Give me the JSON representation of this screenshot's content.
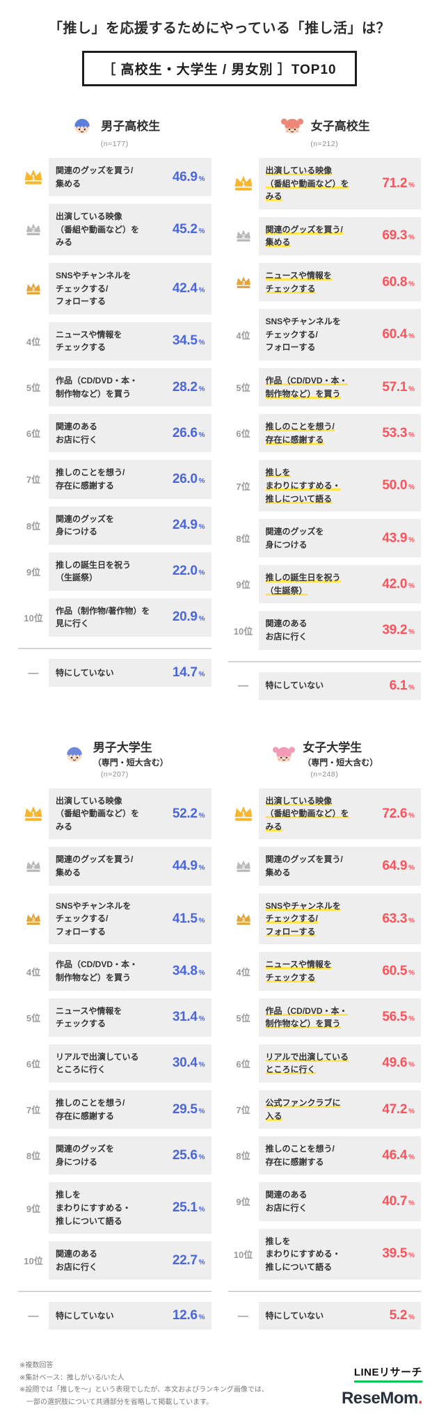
{
  "page": {
    "title": "「推し」を応援するためにやっている「推し活」は？",
    "subtitle": "［ 高校生・大学生 / 男女別 ］TOP10"
  },
  "notes": [
    "※複数回答",
    "※集計ベース：推しがいる/いた人",
    "※設問では「推しを〜」という表現でしたが、本文およびランキング画像では、",
    "　一部の選択肢について共通部分を省略して掲載しています。"
  ],
  "logos": {
    "line_research": "LINEリサーチ",
    "resemom_name": "ReseMom",
    "resemom_dot": "."
  },
  "colors": {
    "male_accent": "#4a66d8",
    "female_accent": "#f9545c",
    "row_bg": "#eeeeee",
    "highlight_underline": "#ffe44a",
    "crown_gold": "#f8b62d",
    "crown_silver": "#b9b9b9",
    "crown_bronze": "#e2a43c",
    "line_green": "#06C755"
  },
  "chart_data": [
    {
      "type": "table",
      "id": "male-highschool",
      "gender": "male",
      "group": "男子高校生",
      "group_sub": "",
      "n_label": "(n=177)",
      "unit": "%",
      "avatar": {
        "icon": "male-student-icon",
        "hair": "#5c7edc",
        "skin": "#fbdec3"
      },
      "rows": [
        {
          "rank": "1",
          "medal": "gold",
          "item": "関連のグッズを買う/\n集める",
          "value": 46.9,
          "highlight": false
        },
        {
          "rank": "2",
          "medal": "silver",
          "item": "出演している映像\n（番組や動画など）を\nみる",
          "value": 45.2,
          "highlight": false
        },
        {
          "rank": "3",
          "medal": "bronze",
          "item": "SNSやチャンネルを\nチェックする/\nフォローする",
          "value": 42.4,
          "highlight": false
        },
        {
          "rank": "4位",
          "medal": null,
          "item": "ニュースや情報を\nチェックする",
          "value": 34.5,
          "highlight": false
        },
        {
          "rank": "5位",
          "medal": null,
          "item": "作品（CD/DVD・本・\n制作物など）を買う",
          "value": 28.2,
          "highlight": false
        },
        {
          "rank": "6位",
          "medal": null,
          "item": "関連のある\nお店に行く",
          "value": 26.6,
          "highlight": false
        },
        {
          "rank": "7位",
          "medal": null,
          "item": "推しのことを想う/\n存在に感謝する",
          "value": 26.0,
          "highlight": false
        },
        {
          "rank": "8位",
          "medal": null,
          "item": "関連のグッズを\n身につける",
          "value": 24.9,
          "highlight": false
        },
        {
          "rank": "9位",
          "medal": null,
          "item": "推しの誕生日を祝う\n（生誕祭）",
          "value": 22.0,
          "highlight": false
        },
        {
          "rank": "10位",
          "medal": null,
          "item": "作品（制作物/著作物）を\n見に行く",
          "value": 20.9,
          "highlight": false
        }
      ],
      "other_row": {
        "rank": "—",
        "medal": null,
        "item": "特にしていない",
        "value": 14.7,
        "highlight": false
      }
    },
    {
      "type": "table",
      "id": "female-highschool",
      "gender": "female",
      "group": "女子高校生",
      "group_sub": "",
      "n_label": "(n=212)",
      "unit": "%",
      "avatar": {
        "icon": "female-student-icon",
        "hair": "#ee8678",
        "skin": "#fbdec3"
      },
      "rows": [
        {
          "rank": "1",
          "medal": "gold",
          "item": "出演している映像\n（番組や動画など）を\nみる",
          "value": 71.2,
          "highlight": true
        },
        {
          "rank": "2",
          "medal": "silver",
          "item": "関連のグッズを買う/\n集める",
          "value": 69.3,
          "highlight": true
        },
        {
          "rank": "3",
          "medal": "bronze",
          "item": "ニュースや情報を\nチェックする",
          "value": 60.8,
          "highlight": true
        },
        {
          "rank": "4位",
          "medal": null,
          "item": "SNSやチャンネルを\nチェックする/\nフォローする",
          "value": 60.4,
          "highlight": false
        },
        {
          "rank": "5位",
          "medal": null,
          "item": "作品（CD/DVD・本・\n制作物など）を買う",
          "value": 57.1,
          "highlight": true
        },
        {
          "rank": "6位",
          "medal": null,
          "item": "推しのことを想う/\n存在に感謝する",
          "value": 53.3,
          "highlight": true
        },
        {
          "rank": "7位",
          "medal": null,
          "item": "推しを\nまわりにすすめる・\n推しについて語る",
          "value": 50.0,
          "highlight": true
        },
        {
          "rank": "8位",
          "medal": null,
          "item": "関連のグッズを\n身につける",
          "value": 43.9,
          "highlight": false
        },
        {
          "rank": "9位",
          "medal": null,
          "item": "推しの誕生日を祝う\n（生誕祭）",
          "value": 42.0,
          "highlight": true
        },
        {
          "rank": "10位",
          "medal": null,
          "item": "関連のある\nお店に行く",
          "value": 39.2,
          "highlight": false
        }
      ],
      "other_row": {
        "rank": "—",
        "medal": null,
        "item": "特にしていない",
        "value": 6.1,
        "highlight": false
      }
    },
    {
      "type": "table",
      "id": "male-university",
      "gender": "male",
      "group": "男子大学生",
      "group_sub": "（専門・短大含む）",
      "n_label": "(n=207)",
      "unit": "%",
      "avatar": {
        "icon": "male-student-icon",
        "hair": "#6e87db",
        "skin": "#fbdec3"
      },
      "rows": [
        {
          "rank": "1",
          "medal": "gold",
          "item": "出演している映像\n（番組や動画など）を\nみる",
          "value": 52.2,
          "highlight": false
        },
        {
          "rank": "2",
          "medal": "silver",
          "item": "関連のグッズを買う/\n集める",
          "value": 44.9,
          "highlight": false
        },
        {
          "rank": "3",
          "medal": "bronze",
          "item": "SNSやチャンネルを\nチェックする/\nフォローする",
          "value": 41.5,
          "highlight": false
        },
        {
          "rank": "4位",
          "medal": null,
          "item": "作品（CD/DVD・本・\n制作物など）を買う",
          "value": 34.8,
          "highlight": false
        },
        {
          "rank": "5位",
          "medal": null,
          "item": "ニュースや情報を\nチェックする",
          "value": 31.4,
          "highlight": false
        },
        {
          "rank": "6位",
          "medal": null,
          "item": "リアルで出演している\nところに行く",
          "value": 30.4,
          "highlight": false
        },
        {
          "rank": "7位",
          "medal": null,
          "item": "推しのことを想う/\n存在に感謝する",
          "value": 29.5,
          "highlight": false
        },
        {
          "rank": "8位",
          "medal": null,
          "item": "関連のグッズを\n身につける",
          "value": 25.6,
          "highlight": false
        },
        {
          "rank": "9位",
          "medal": null,
          "item": "推しを\nまわりにすすめる・\n推しについて語る",
          "value": 25.1,
          "highlight": false
        },
        {
          "rank": "10位",
          "medal": null,
          "item": "関連のある\nお店に行く",
          "value": 22.7,
          "highlight": false
        }
      ],
      "other_row": {
        "rank": "—",
        "medal": null,
        "item": "特にしていない",
        "value": 12.6,
        "highlight": false
      }
    },
    {
      "type": "table",
      "id": "female-university",
      "gender": "female",
      "group": "女子大学生",
      "group_sub": "（専門・短大含む）",
      "n_label": "(n=248)",
      "unit": "%",
      "avatar": {
        "icon": "female-student-icon",
        "hair": "#f29bb8",
        "skin": "#fbdec3"
      },
      "rows": [
        {
          "rank": "1",
          "medal": "gold",
          "item": "出演している映像\n（番組や動画など）を\nみる",
          "value": 72.6,
          "highlight": true
        },
        {
          "rank": "2",
          "medal": "silver",
          "item": "関連のグッズを買う/\n集める",
          "value": 64.9,
          "highlight": false
        },
        {
          "rank": "3",
          "medal": "bronze",
          "item": "SNSやチャンネルを\nチェックする/\nフォローする",
          "value": 63.3,
          "highlight": true
        },
        {
          "rank": "4位",
          "medal": null,
          "item": "ニュースや情報を\nチェックする",
          "value": 60.5,
          "highlight": true
        },
        {
          "rank": "5位",
          "medal": null,
          "item": "作品（CD/DVD・本・\n制作物など）を買う",
          "value": 56.5,
          "highlight": true
        },
        {
          "rank": "6位",
          "medal": null,
          "item": "リアルで出演している\nところに行く",
          "value": 49.6,
          "highlight": true
        },
        {
          "rank": "7位",
          "medal": null,
          "item": "公式ファンクラブに\n入る",
          "value": 47.2,
          "highlight": true
        },
        {
          "rank": "8位",
          "medal": null,
          "item": "推しのことを想う/\n存在に感謝する",
          "value": 46.4,
          "highlight": false
        },
        {
          "rank": "9位",
          "medal": null,
          "item": "関連のある\nお店に行く",
          "value": 40.7,
          "highlight": false
        },
        {
          "rank": "10位",
          "medal": null,
          "item": "推しを\nまわりにすすめる・\n推しについて語る",
          "value": 39.5,
          "highlight": false
        }
      ],
      "other_row": {
        "rank": "—",
        "medal": null,
        "item": "特にしていない",
        "value": 5.2,
        "highlight": false
      }
    }
  ]
}
